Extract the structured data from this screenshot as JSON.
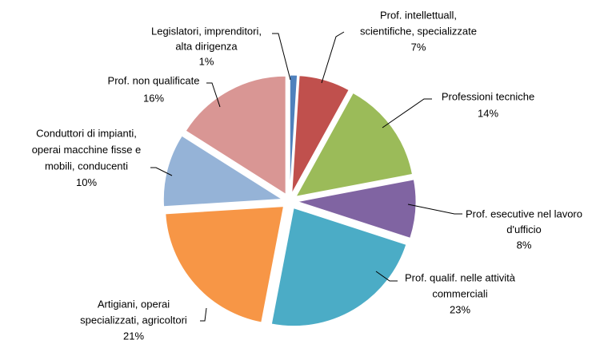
{
  "chart_data": {
    "type": "pie",
    "categories": [
      [
        "Legislatori, imprenditori,",
        "alta dirigenza"
      ],
      [
        "Prof. intellettuall,",
        "scientifiche, specializzate"
      ],
      [
        "Professioni tecniche"
      ],
      [
        "Prof. esecutive nel lavoro",
        "d'ufficio"
      ],
      [
        "Prof. qualif. nelle attività",
        "commerciali"
      ],
      [
        "Artigiani, operai",
        "specializzati, agricoltori"
      ],
      [
        "Conduttori di impianti,",
        "operai macchine fisse e",
        "mobili, conducenti"
      ],
      [
        "Prof. non qualificate"
      ]
    ],
    "values": [
      1,
      7,
      14,
      8,
      23,
      21,
      10,
      16
    ],
    "value_labels": [
      "1%",
      "7%",
      "14%",
      "8%",
      "23%",
      "21%",
      "10%",
      "16%"
    ],
    "colors": [
      "#4f81bd",
      "#c0504d",
      "#9bbb59",
      "#8064a2",
      "#4bacc6",
      "#f79646",
      "#95b3d7",
      "#d99694"
    ]
  }
}
